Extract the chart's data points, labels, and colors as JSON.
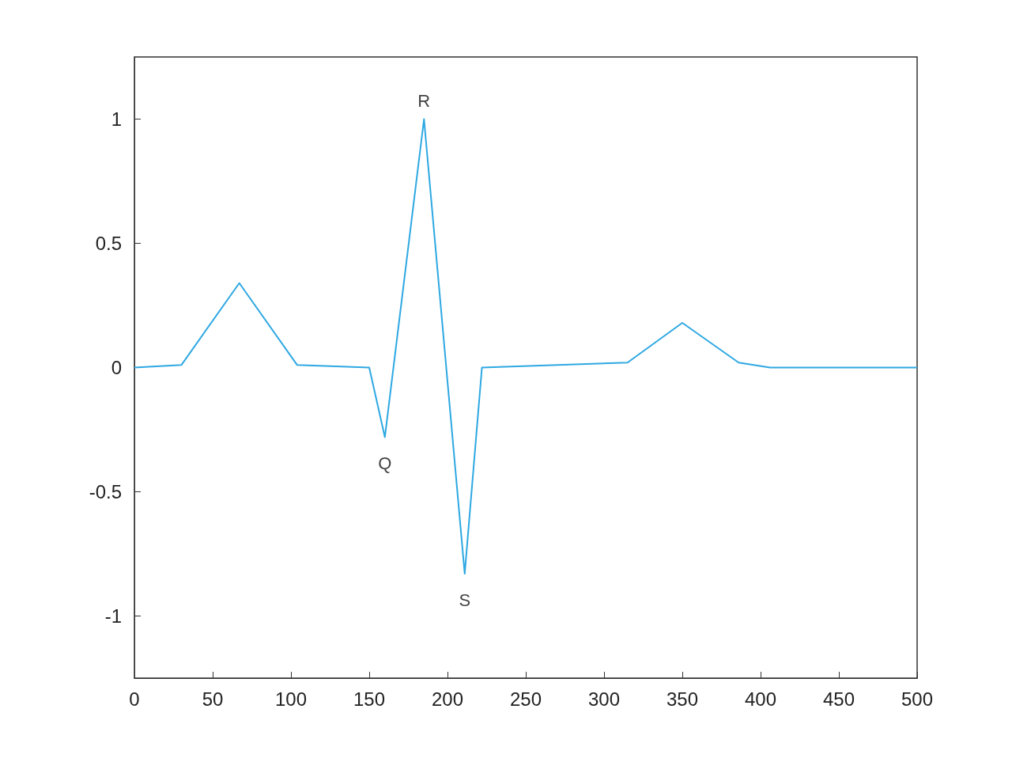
{
  "chart_data": {
    "type": "line",
    "x": [
      0,
      30,
      67,
      104,
      150,
      160,
      185,
      211,
      222,
      315,
      350,
      386,
      406,
      500
    ],
    "values": [
      0,
      0.01,
      0.34,
      0.01,
      0,
      -0.28,
      1,
      -0.83,
      0,
      0.02,
      0.18,
      0.02,
      0,
      0
    ],
    "color": "#2ea8e2",
    "xlim": [
      0,
      500
    ],
    "xticks": [
      0,
      50,
      100,
      150,
      200,
      250,
      300,
      350,
      400,
      450,
      500
    ],
    "ylim": [
      -1.25,
      1.25
    ],
    "yticks": [
      -1,
      -0.5,
      0,
      0.5,
      1
    ],
    "grid": false,
    "marker": "none",
    "line_style": "solid",
    "annotations": [
      {
        "text": "Q",
        "x": 160,
        "y": -0.28
      },
      {
        "text": "R",
        "x": 185,
        "y": 1
      },
      {
        "text": "S",
        "x": 211,
        "y": -0.83
      }
    ]
  }
}
